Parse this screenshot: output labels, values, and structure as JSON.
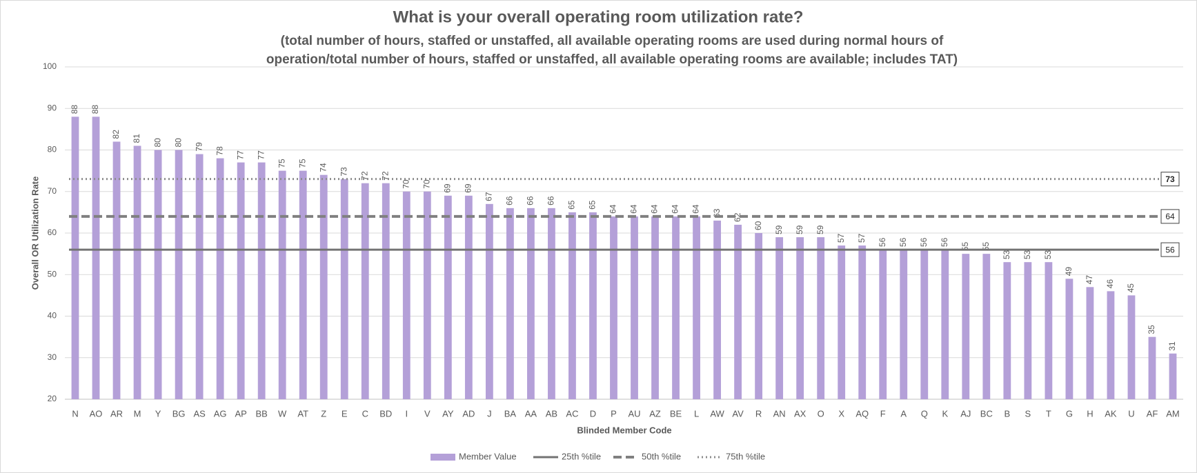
{
  "chart_data": {
    "type": "bar",
    "title": "What is your overall operating room utilization rate?",
    "subtitle": [
      "(total number of hours, staffed or unstaffed, all available operating rooms are used during normal hours of",
      "operation/total number of hours, staffed or unstaffed, all available operating rooms are available; includes TAT)"
    ],
    "x_label": "Blinded Member Code",
    "y_label": "Overall OR Utilization Rate",
    "categories": [
      "N",
      "AO",
      "AR",
      "M",
      "Y",
      "BG",
      "AS",
      "AG",
      "AP",
      "BB",
      "W",
      "AT",
      "Z",
      "E",
      "C",
      "BD",
      "I",
      "V",
      "AY",
      "AD",
      "J",
      "BA",
      "AA",
      "AB",
      "AC",
      "D",
      "P",
      "AU",
      "AZ",
      "BE",
      "L",
      "AW",
      "AV",
      "R",
      "AN",
      "AX",
      "O",
      "X",
      "AQ",
      "F",
      "A",
      "Q",
      "K",
      "AJ",
      "BC",
      "B",
      "S",
      "T",
      "G",
      "H",
      "AK",
      "U",
      "AF",
      "AM"
    ],
    "series": [
      {
        "name": "Member Value",
        "color": "#b4a0d8",
        "values": [
          88,
          88,
          82,
          81,
          80,
          80,
          79,
          78,
          77,
          77,
          75,
          75,
          74,
          73,
          72,
          72,
          70,
          70,
          69,
          69,
          67,
          66,
          66,
          66,
          65,
          65,
          64,
          64,
          64,
          64,
          64,
          63,
          62,
          60,
          59,
          59,
          59,
          57,
          57,
          56,
          56,
          56,
          56,
          55,
          55,
          53,
          53,
          53,
          49,
          47,
          46,
          45,
          35,
          31
        ]
      }
    ],
    "percentiles": [
      {
        "name": "25th %tile",
        "value": 56,
        "color": "#737373",
        "style": "solid"
      },
      {
        "name": "50th %tile",
        "value": 64,
        "color": "#808080",
        "style": "dashed"
      },
      {
        "name": "75th %tile",
        "value": 73,
        "color": "#8c8c8c",
        "style": "dotted"
      }
    ],
    "ylim": [
      20,
      100
    ],
    "yticks": [
      20,
      30,
      40,
      50,
      60,
      70,
      80,
      90,
      100
    ],
    "grid": true,
    "legend": "bottom"
  }
}
